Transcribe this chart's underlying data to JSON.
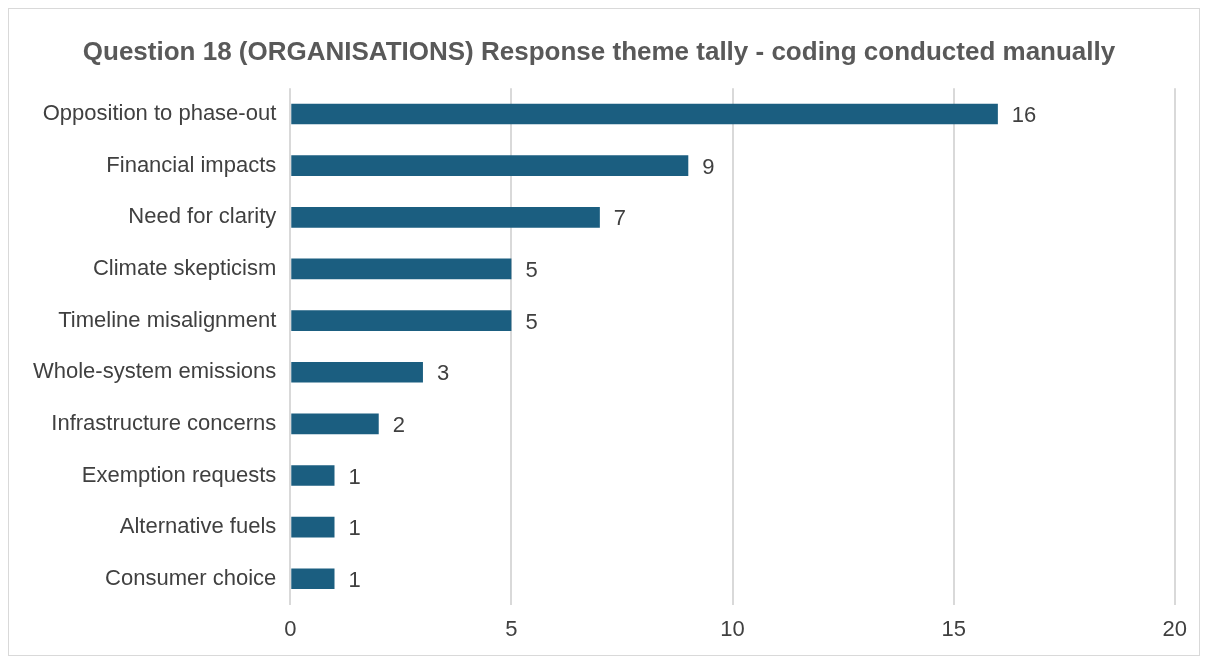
{
  "chart_data": {
    "type": "bar",
    "orientation": "horizontal",
    "title": "Question 18 (ORGANISATIONS) Response theme tally - coding conducted manually",
    "categories": [
      "Opposition to phase-out",
      "Financial impacts",
      "Need for clarity",
      "Climate skepticism",
      "Timeline misalignment",
      "Whole-system emissions",
      "Infrastructure concerns",
      "Exemption requests",
      "Alternative fuels",
      "Consumer choice"
    ],
    "values": [
      16,
      9,
      7,
      5,
      5,
      3,
      2,
      1,
      1,
      1
    ],
    "color": "#1b5e80",
    "xlim": [
      0,
      20
    ],
    "xticks": [
      0,
      5,
      10,
      15,
      20
    ],
    "grid": "x",
    "data_labels": true,
    "legend": false
  }
}
